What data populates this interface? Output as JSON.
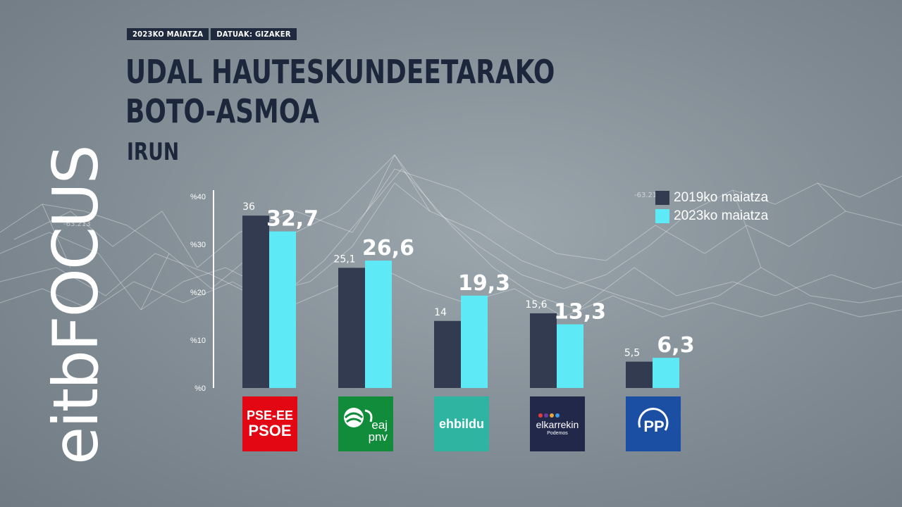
{
  "header": {
    "tag_date": "2023KO MAIATZA",
    "tag_source": "DATUAK: GIZAKER",
    "title_line1": "UDAL HAUTESKUNDEETARAKO",
    "title_line2": "BOTO-ASMOA",
    "subtitle": "IRUN"
  },
  "brand": {
    "eitb": "eitb",
    "focus": "FOCUS"
  },
  "background_numbers": [
    "-63.213",
    "-63.213"
  ],
  "legend": [
    {
      "label": "2019ko maiatza",
      "color": "#323b4f"
    },
    {
      "label": "2023ko maiatza",
      "color": "#5ee9f7"
    }
  ],
  "logos": {
    "psoe_line1": "PSE-EE",
    "psoe_line2": "PSOE",
    "pnv_line1": "eaj",
    "pnv_line2": "pnv",
    "bildu": "ehbildu",
    "elkarrekin": "elkarrekin",
    "elkarrekin_sub": "Podemos",
    "pp": "PP",
    "icon_names": [
      "psoe-logo",
      "pnv-logo",
      "ehbildu-logo",
      "elkarrekin-logo",
      "pp-logo"
    ]
  },
  "chart_data": {
    "type": "bar",
    "title": "UDAL HAUTESKUNDEETARAKO BOTO-ASMOA",
    "subtitle": "IRUN",
    "categories": [
      "PSE-EE PSOE",
      "EAJ-PNV",
      "EH Bildu",
      "Elkarrekin Podemos",
      "PP"
    ],
    "series": [
      {
        "name": "2019ko maiatza",
        "values": [
          36,
          25.1,
          14,
          15.6,
          5.5
        ],
        "labels": [
          "36",
          "25,1",
          "14",
          "15,6",
          "5,5"
        ],
        "color": "#323b4f"
      },
      {
        "name": "2023ko maiatza",
        "values": [
          32.7,
          26.6,
          19.3,
          13.3,
          6.3
        ],
        "labels": [
          "32,7",
          "26,6",
          "19,3",
          "13,3",
          "6,3"
        ],
        "color": "#5ee9f7"
      }
    ],
    "yticks": [
      "%0",
      "%10",
      "%20",
      "%30",
      "%40"
    ],
    "ytick_values": [
      0,
      10,
      20,
      30,
      40
    ],
    "ylim": [
      0,
      40
    ],
    "grid": false,
    "legend_position": "top-right"
  }
}
